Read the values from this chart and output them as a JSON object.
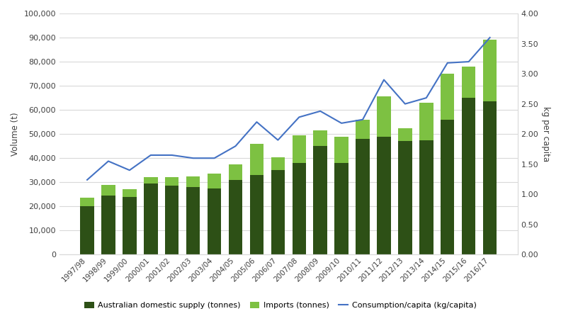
{
  "years": [
    "1997/98",
    "1998/99",
    "1999/00",
    "2000/01",
    "2001/02",
    "2002/03",
    "2003/04",
    "2004/05",
    "2005/06",
    "2006/07",
    "2007/08",
    "2008/09",
    "2009/10",
    "2010/11",
    "2011/12",
    "2012/13",
    "2013/14",
    "2014/15",
    "2015/16",
    "2016/17"
  ],
  "domestic_supply": [
    20000,
    24500,
    24000,
    29500,
    28500,
    28000,
    27500,
    31000,
    33000,
    35000,
    38000,
    45000,
    38000,
    48000,
    49000,
    47000,
    47500,
    56000,
    65000,
    63500
  ],
  "imports": [
    3500,
    4500,
    3000,
    2500,
    3500,
    4500,
    6000,
    6500,
    13000,
    5500,
    11500,
    6500,
    11000,
    8000,
    16500,
    5500,
    15500,
    19000,
    13000,
    25500
  ],
  "consumption_per_capita": [
    1.24,
    1.55,
    1.4,
    1.65,
    1.65,
    1.6,
    1.6,
    1.8,
    2.2,
    1.9,
    2.28,
    2.38,
    2.18,
    2.24,
    2.9,
    2.5,
    2.6,
    3.18,
    3.2,
    3.6
  ],
  "domestic_color": "#2d5016",
  "imports_color": "#7dc142",
  "line_color": "#4472c4",
  "ylabel_left": "Volume (t)",
  "ylabel_right": "kg per capita",
  "ylim_left": [
    0,
    100000
  ],
  "ylim_right": [
    0,
    4.0
  ],
  "yticks_left": [
    0,
    10000,
    20000,
    30000,
    40000,
    50000,
    60000,
    70000,
    80000,
    90000,
    100000
  ],
  "yticks_right": [
    0.0,
    0.5,
    1.0,
    1.5,
    2.0,
    2.5,
    3.0,
    3.5,
    4.0
  ],
  "legend_labels": [
    "Australian domestic supply (tonnes)",
    "Imports (tonnes)",
    "Consumption/capita (kg/capita)"
  ],
  "bg_color": "#ffffff",
  "grid_color": "#d9d9d9",
  "spine_color": "#d9d9d9",
  "text_color": "#404040",
  "bar_width": 0.65,
  "figsize": [
    7.92,
    4.46
  ],
  "dpi": 100
}
